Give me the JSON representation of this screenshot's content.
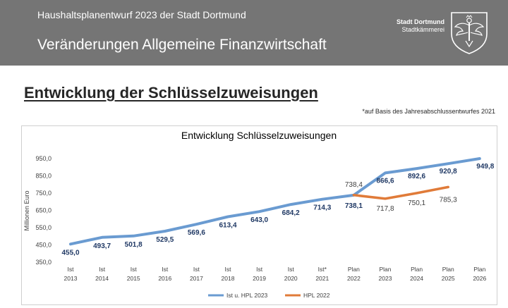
{
  "header": {
    "subtitle": "Haushaltsplanentwurf 2023 der Stadt Dortmund",
    "title": "Veränderungen Allgemeine Finanzwirtschaft",
    "org_name": "Stadt Dortmund",
    "org_department": "Stadtkämmerei"
  },
  "page_title": "Entwicklung der Schlüsselzuweisungen",
  "footnote": "*auf Basis des Jahresabschlussentwurfes 2021",
  "colors": {
    "header_bg": "#757575",
    "series_ist_hpl2023": "#6a9bd1",
    "series_hpl2022": "#e07b39",
    "label_dark": "#1f3864",
    "label_light": "#404040"
  },
  "icons": [
    "dortmund-eagle-crest-icon"
  ],
  "chart_data": {
    "type": "line",
    "title": "Entwicklung Schlüsselzuweisungen",
    "ylabel": "Millionen Euro",
    "xlabel": "",
    "ylim": [
      350,
      1000
    ],
    "yticks": [
      "350,0",
      "450,0",
      "550,0",
      "650,0",
      "750,0",
      "850,0",
      "950,0"
    ],
    "ytick_values": [
      350,
      450,
      550,
      650,
      750,
      850,
      950
    ],
    "categories": [
      [
        "Ist",
        "2013"
      ],
      [
        "Ist",
        "2014"
      ],
      [
        "Ist",
        "2015"
      ],
      [
        "Ist",
        "2016"
      ],
      [
        "Ist",
        "2017"
      ],
      [
        "Ist",
        "2018"
      ],
      [
        "Ist",
        "2019"
      ],
      [
        "Ist",
        "2020"
      ],
      [
        "Ist*",
        "2021"
      ],
      [
        "Plan",
        "2022"
      ],
      [
        "Plan",
        "2023"
      ],
      [
        "Plan",
        "2024"
      ],
      [
        "Plan",
        "2025"
      ],
      [
        "Plan",
        "2026"
      ]
    ],
    "grid": false,
    "legend": "bottom",
    "series": [
      {
        "name": "Ist u. HPL 2023",
        "color": "#6a9bd1",
        "values": [
          455.0,
          493.7,
          501.8,
          529.5,
          569.6,
          613.4,
          643.0,
          684.2,
          714.3,
          738.1,
          866.6,
          892.6,
          920.8,
          949.8
        ],
        "labels": [
          "455,0",
          "493,7",
          "501,8",
          "529,5",
          "569,6",
          "613,4",
          "643,0",
          "684,2",
          "714,3",
          "738,1",
          "866,6",
          "892,6",
          "920,8",
          "949,8"
        ]
      },
      {
        "name": "HPL 2022",
        "color": "#e07b39",
        "values": [
          null,
          null,
          null,
          null,
          null,
          null,
          null,
          null,
          null,
          738.4,
          717.8,
          750.1,
          785.3,
          null
        ],
        "labels": [
          null,
          null,
          null,
          null,
          null,
          null,
          null,
          null,
          null,
          "738,4",
          "717,8",
          "750,1",
          "785,3",
          null
        ]
      }
    ]
  }
}
